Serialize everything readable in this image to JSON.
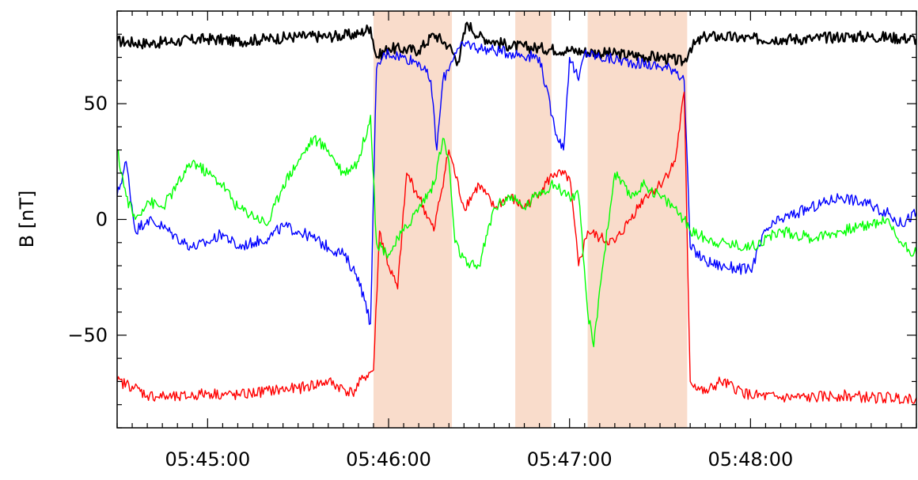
{
  "chart_data": {
    "type": "line",
    "title": "",
    "xlabel": "",
    "ylabel": "B [nT]",
    "x_unit": "time",
    "xlim": [
      "05:44:30",
      "05:48:55"
    ],
    "ylim": [
      -90,
      90
    ],
    "x_ticks": [
      "05:45:00",
      "05:46:00",
      "05:47:00",
      "05:48:00"
    ],
    "y_ticks": [
      50,
      0,
      -50
    ],
    "grid": false,
    "legend": "none",
    "shaded_intervals": [
      {
        "start": "05:45:55",
        "end": "05:46:21",
        "color": "#f9dccb"
      },
      {
        "start": "05:46:42",
        "end": "05:46:54",
        "color": "#f9dccb"
      },
      {
        "start": "05:47:06",
        "end": "05:47:39",
        "color": "#f9dccb"
      }
    ],
    "series": [
      {
        "color": "#000000",
        "x": [
          "05:44:30",
          "05:44:40",
          "05:44:50",
          "05:45:00",
          "05:45:10",
          "05:45:20",
          "05:45:30",
          "05:45:40",
          "05:45:50",
          "05:45:54",
          "05:45:56",
          "05:46:00",
          "05:46:10",
          "05:46:15",
          "05:46:20",
          "05:46:23",
          "05:46:26",
          "05:46:30",
          "05:46:40",
          "05:46:50",
          "05:47:00",
          "05:47:10",
          "05:47:20",
          "05:47:30",
          "05:47:38",
          "05:47:40",
          "05:47:45",
          "05:47:50",
          "05:48:00",
          "05:48:10",
          "05:48:20",
          "05:48:30",
          "05:48:40",
          "05:48:55"
        ],
        "y": [
          77,
          76,
          77,
          78,
          77,
          78,
          79,
          79,
          80,
          83,
          70,
          74,
          73,
          80,
          75,
          68,
          85,
          79,
          75,
          74,
          73,
          72,
          71,
          70,
          68,
          74,
          79,
          79,
          78,
          78,
          78,
          79,
          79,
          78
        ]
      },
      {
        "color": "#0000ff",
        "x": [
          "05:44:30",
          "05:44:33",
          "05:44:36",
          "05:44:40",
          "05:44:45",
          "05:44:50",
          "05:44:55",
          "05:45:00",
          "05:45:05",
          "05:45:10",
          "05:45:15",
          "05:45:20",
          "05:45:25",
          "05:45:30",
          "05:45:35",
          "05:45:40",
          "05:45:45",
          "05:45:50",
          "05:45:52",
          "05:45:54",
          "05:45:56",
          "05:45:58",
          "05:46:00",
          "05:46:05",
          "05:46:10",
          "05:46:14",
          "05:46:16",
          "05:46:18",
          "05:46:22",
          "05:46:26",
          "05:46:30",
          "05:46:40",
          "05:46:50",
          "05:46:55",
          "05:46:58",
          "05:47:00",
          "05:47:03",
          "05:47:05",
          "05:47:10",
          "05:47:20",
          "05:47:30",
          "05:47:35",
          "05:47:38",
          "05:47:40",
          "05:47:45",
          "05:47:50",
          "05:48:00",
          "05:48:05",
          "05:48:10",
          "05:48:20",
          "05:48:30",
          "05:48:40",
          "05:48:45",
          "05:48:50",
          "05:48:55"
        ],
        "y": [
          10,
          25,
          -5,
          0,
          -3,
          -8,
          -12,
          -10,
          -6,
          -12,
          -10,
          -8,
          -3,
          -5,
          -8,
          -12,
          -15,
          -25,
          -35,
          -45,
          65,
          70,
          72,
          70,
          68,
          60,
          30,
          60,
          72,
          76,
          74,
          72,
          70,
          40,
          30,
          70,
          60,
          72,
          70,
          68,
          66,
          65,
          60,
          -12,
          -18,
          -20,
          -22,
          -5,
          0,
          5,
          10,
          6,
          3,
          -2,
          3
        ]
      },
      {
        "color": "#ff0000",
        "x": [
          "05:44:30",
          "05:44:35",
          "05:44:40",
          "05:44:50",
          "05:45:00",
          "05:45:10",
          "05:45:20",
          "05:45:30",
          "05:45:40",
          "05:45:48",
          "05:45:52",
          "05:45:55",
          "05:45:57",
          "05:46:00",
          "05:46:03",
          "05:46:06",
          "05:46:10",
          "05:46:15",
          "05:46:20",
          "05:46:25",
          "05:46:30",
          "05:46:35",
          "05:46:40",
          "05:46:45",
          "05:46:50",
          "05:46:55",
          "05:47:00",
          "05:47:03",
          "05:47:06",
          "05:47:10",
          "05:47:15",
          "05:47:20",
          "05:47:25",
          "05:47:30",
          "05:47:35",
          "05:47:38",
          "05:47:40",
          "05:47:45",
          "05:47:50",
          "05:48:00",
          "05:48:10",
          "05:48:20",
          "05:48:30",
          "05:48:40",
          "05:48:55"
        ],
        "y": [
          -70,
          -72,
          -76,
          -77,
          -75,
          -76,
          -74,
          -73,
          -70,
          -75,
          -68,
          -65,
          -5,
          -20,
          -30,
          20,
          10,
          -5,
          30,
          5,
          15,
          5,
          10,
          5,
          12,
          20,
          18,
          -20,
          -5,
          -8,
          -10,
          0,
          10,
          15,
          25,
          55,
          -70,
          -75,
          -70,
          -76,
          -77,
          -77,
          -76,
          -77,
          -77
        ]
      },
      {
        "color": "#00ff00",
        "x": [
          "05:44:30",
          "05:44:33",
          "05:44:36",
          "05:44:40",
          "05:44:45",
          "05:44:50",
          "05:44:55",
          "05:45:00",
          "05:45:05",
          "05:45:10",
          "05:45:15",
          "05:45:20",
          "05:45:25",
          "05:45:30",
          "05:45:35",
          "05:45:40",
          "05:45:45",
          "05:45:50",
          "05:45:54",
          "05:45:56",
          "05:46:00",
          "05:46:05",
          "05:46:10",
          "05:46:15",
          "05:46:18",
          "05:46:20",
          "05:46:22",
          "05:46:26",
          "05:46:30",
          "05:46:35",
          "05:46:40",
          "05:46:45",
          "05:46:50",
          "05:46:55",
          "05:47:00",
          "05:47:03",
          "05:47:06",
          "05:47:08",
          "05:47:10",
          "05:47:15",
          "05:47:20",
          "05:47:25",
          "05:47:30",
          "05:47:35",
          "05:47:38",
          "05:47:40",
          "05:47:45",
          "05:47:50",
          "05:48:00",
          "05:48:10",
          "05:48:20",
          "05:48:30",
          "05:48:40",
          "05:48:45",
          "05:48:50",
          "05:48:55"
        ],
        "y": [
          30,
          10,
          0,
          8,
          5,
          15,
          25,
          20,
          15,
          5,
          2,
          -2,
          15,
          25,
          35,
          30,
          20,
          25,
          45,
          -10,
          -15,
          -5,
          5,
          15,
          35,
          25,
          -10,
          -20,
          -20,
          5,
          10,
          5,
          12,
          15,
          10,
          10,
          -40,
          -55,
          -30,
          20,
          10,
          15,
          10,
          5,
          0,
          -5,
          -8,
          -10,
          -12,
          -5,
          -8,
          -5,
          -2,
          0,
          -10,
          -15
        ]
      }
    ]
  }
}
